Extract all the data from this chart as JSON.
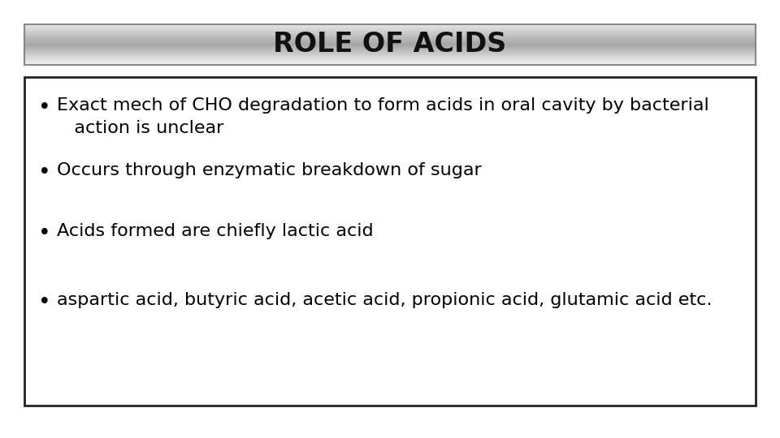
{
  "title": "ROLE OF ACIDS",
  "title_fontsize": 24,
  "background_color": "#ffffff",
  "bullet_points": [
    "Exact mech of CHO degradation to form acids in oral cavity by bacterial\n   action is unclear",
    "Occurs through enzymatic breakdown of sugar",
    "Acids formed are chiefly lactic acid",
    "aspartic acid, butyric acid, acetic acid, propionic acid, glutamic acid etc."
  ],
  "bullet_fontsize": 16,
  "bullet_color": "#000000",
  "content_box_color": "#ffffff",
  "content_box_edge_color": "#222222",
  "title_box_edge_color": "#888888",
  "font_family": "sans-serif"
}
